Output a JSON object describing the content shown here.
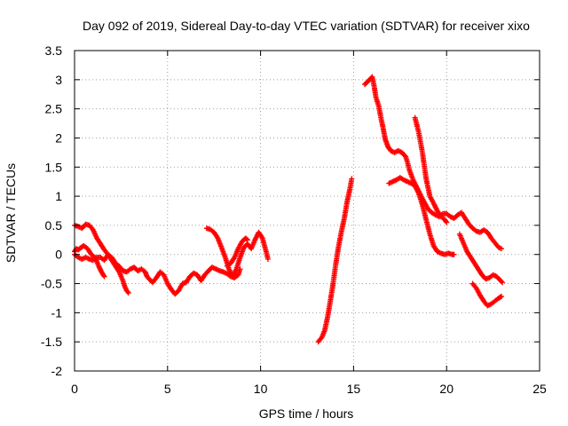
{
  "chart_data": {
    "type": "scatter",
    "title": "Day 092 of 2019, Sidereal Day-to-day VTEC variation (SDTVAR) for receiver xixo",
    "xlabel": "GPS time / hours",
    "ylabel": "SDTVAR / TECUs",
    "xlim": [
      0,
      25
    ],
    "ylim": [
      -2,
      3.5
    ],
    "xticks": [
      "0",
      "5",
      "10",
      "15",
      "20",
      "25"
    ],
    "yticks": [
      "-2",
      "-1.5",
      "-1",
      "-0.5",
      "0",
      "0.5",
      "1",
      "1.5",
      "2",
      "2.5",
      "3",
      "3.5"
    ],
    "grid": true,
    "marker": "plus",
    "color": "#ff0000",
    "series": [
      {
        "points": [
          [
            0.0,
            0.5
          ],
          [
            0.2,
            0.48
          ],
          [
            0.4,
            0.45
          ],
          [
            0.6,
            0.52
          ],
          [
            0.8,
            0.5
          ],
          [
            1.0,
            0.42
          ],
          [
            1.1,
            0.35
          ],
          [
            1.2,
            0.28
          ],
          [
            1.4,
            0.18
          ],
          [
            1.6,
            0.08
          ],
          [
            1.8,
            0.0
          ],
          [
            2.0,
            -0.1
          ],
          [
            2.2,
            -0.2
          ],
          [
            2.4,
            -0.3
          ],
          [
            2.6,
            -0.45
          ],
          [
            2.7,
            -0.55
          ],
          [
            2.8,
            -0.62
          ],
          [
            2.9,
            -0.66
          ]
        ]
      },
      {
        "points": [
          [
            0.0,
            0.05
          ],
          [
            0.1,
            0.1
          ],
          [
            0.2,
            0.08
          ],
          [
            0.35,
            0.12
          ],
          [
            0.5,
            0.15
          ],
          [
            0.7,
            0.1
          ],
          [
            0.9,
            0.0
          ],
          [
            1.1,
            -0.05
          ],
          [
            1.3,
            -0.2
          ],
          [
            1.45,
            -0.3
          ],
          [
            1.6,
            -0.38
          ]
        ]
      },
      {
        "points": [
          [
            0.0,
            0.0
          ],
          [
            0.2,
            -0.05
          ],
          [
            0.4,
            -0.08
          ],
          [
            0.6,
            -0.05
          ],
          [
            0.8,
            -0.08
          ],
          [
            1.0,
            -0.1
          ],
          [
            1.2,
            -0.05
          ],
          [
            1.4,
            -0.05
          ],
          [
            1.6,
            -0.1
          ],
          [
            1.8,
            0.0
          ],
          [
            2.0,
            -0.05
          ],
          [
            2.2,
            -0.15
          ],
          [
            2.4,
            -0.2
          ],
          [
            2.6,
            -0.28
          ],
          [
            2.8,
            -0.3
          ],
          [
            3.0,
            -0.25
          ],
          [
            3.2,
            -0.22
          ],
          [
            3.4,
            -0.28
          ],
          [
            3.6,
            -0.25
          ],
          [
            3.8,
            -0.3
          ],
          [
            3.9,
            -0.38
          ],
          [
            4.0,
            -0.42
          ],
          [
            4.2,
            -0.48
          ],
          [
            4.4,
            -0.4
          ],
          [
            4.6,
            -0.3
          ],
          [
            4.8,
            -0.35
          ],
          [
            5.0,
            -0.5
          ],
          [
            5.2,
            -0.6
          ],
          [
            5.4,
            -0.68
          ],
          [
            5.6,
            -0.62
          ],
          [
            5.8,
            -0.5
          ],
          [
            6.0,
            -0.48
          ],
          [
            6.2,
            -0.38
          ],
          [
            6.4,
            -0.32
          ],
          [
            6.6,
            -0.35
          ],
          [
            6.8,
            -0.45
          ],
          [
            7.0,
            -0.35
          ],
          [
            7.2,
            -0.28
          ],
          [
            7.4,
            -0.22
          ],
          [
            7.6,
            -0.25
          ],
          [
            7.8,
            -0.28
          ],
          [
            8.0,
            -0.3
          ],
          [
            8.2,
            -0.33
          ],
          [
            8.4,
            -0.38
          ],
          [
            8.6,
            -0.4
          ],
          [
            8.8,
            -0.35
          ],
          [
            8.9,
            -0.25
          ]
        ]
      },
      {
        "points": [
          [
            7.1,
            0.45
          ],
          [
            7.3,
            0.43
          ],
          [
            7.5,
            0.38
          ],
          [
            7.7,
            0.28
          ],
          [
            7.9,
            0.12
          ],
          [
            8.1,
            -0.05
          ],
          [
            8.3,
            -0.25
          ],
          [
            8.5,
            -0.38
          ],
          [
            8.7,
            -0.25
          ],
          [
            8.9,
            -0.05
          ],
          [
            9.1,
            0.12
          ],
          [
            9.3,
            0.18
          ],
          [
            9.5,
            0.1
          ],
          [
            9.7,
            0.25
          ],
          [
            9.9,
            0.38
          ],
          [
            10.1,
            0.28
          ],
          [
            10.3,
            0.05
          ],
          [
            10.4,
            -0.08
          ]
        ]
      },
      {
        "points": [
          [
            8.2,
            -0.2
          ],
          [
            8.4,
            -0.15
          ],
          [
            8.6,
            -0.05
          ],
          [
            8.8,
            0.1
          ],
          [
            9.0,
            0.22
          ],
          [
            9.2,
            0.28
          ],
          [
            9.3,
            0.25
          ]
        ]
      },
      {
        "points": [
          [
            13.1,
            -1.5
          ],
          [
            13.3,
            -1.42
          ],
          [
            13.45,
            -1.3
          ],
          [
            13.6,
            -1.08
          ],
          [
            13.75,
            -0.8
          ],
          [
            13.9,
            -0.5
          ],
          [
            14.05,
            -0.15
          ],
          [
            14.2,
            0.15
          ],
          [
            14.35,
            0.4
          ],
          [
            14.5,
            0.62
          ],
          [
            14.65,
            0.9
          ],
          [
            14.8,
            1.12
          ],
          [
            14.9,
            1.3
          ]
        ]
      },
      {
        "points": [
          [
            15.6,
            2.92
          ],
          [
            15.8,
            2.98
          ],
          [
            16.0,
            3.05
          ],
          [
            16.1,
            2.9
          ],
          [
            16.2,
            2.7
          ],
          [
            16.35,
            2.55
          ],
          [
            16.5,
            2.3
          ],
          [
            16.6,
            2.15
          ],
          [
            16.7,
            1.98
          ],
          [
            16.85,
            1.85
          ],
          [
            17.0,
            1.78
          ],
          [
            17.2,
            1.75
          ],
          [
            17.4,
            1.78
          ],
          [
            17.6,
            1.75
          ],
          [
            17.8,
            1.68
          ],
          [
            17.9,
            1.58
          ],
          [
            18.0,
            1.45
          ],
          [
            18.2,
            1.28
          ],
          [
            18.4,
            1.15
          ],
          [
            18.6,
            1.02
          ],
          [
            18.8,
            0.9
          ],
          [
            19.0,
            0.78
          ],
          [
            19.2,
            0.72
          ],
          [
            19.4,
            0.68
          ],
          [
            19.6,
            0.65
          ],
          [
            19.8,
            0.7
          ],
          [
            20.0,
            0.7
          ],
          [
            20.2,
            0.65
          ],
          [
            20.4,
            0.62
          ],
          [
            20.6,
            0.68
          ],
          [
            20.8,
            0.72
          ],
          [
            21.0,
            0.62
          ],
          [
            21.2,
            0.52
          ],
          [
            21.4,
            0.45
          ],
          [
            21.6,
            0.4
          ],
          [
            21.8,
            0.38
          ],
          [
            22.0,
            0.42
          ],
          [
            22.2,
            0.38
          ],
          [
            22.4,
            0.28
          ],
          [
            22.6,
            0.2
          ],
          [
            22.8,
            0.12
          ],
          [
            22.95,
            0.1
          ]
        ]
      },
      {
        "points": [
          [
            16.9,
            1.22
          ],
          [
            17.1,
            1.25
          ],
          [
            17.3,
            1.28
          ],
          [
            17.5,
            1.32
          ],
          [
            17.7,
            1.28
          ],
          [
            17.9,
            1.25
          ],
          [
            18.1,
            1.22
          ],
          [
            18.3,
            1.18
          ],
          [
            18.5,
            1.05
          ],
          [
            18.7,
            0.85
          ],
          [
            18.9,
            0.6
          ],
          [
            19.1,
            0.35
          ],
          [
            19.3,
            0.15
          ],
          [
            19.5,
            0.05
          ],
          [
            19.7,
            0.02
          ],
          [
            19.9,
            0.0
          ],
          [
            20.1,
            0.02
          ],
          [
            20.3,
            0.0
          ],
          [
            20.4,
            0.0
          ]
        ]
      },
      {
        "points": [
          [
            18.3,
            2.35
          ],
          [
            18.5,
            2.1
          ],
          [
            18.7,
            1.75
          ],
          [
            18.9,
            1.3
          ],
          [
            19.1,
            1.0
          ],
          [
            19.3,
            0.88
          ],
          [
            19.5,
            0.75
          ],
          [
            19.7,
            0.65
          ],
          [
            19.9,
            0.6
          ],
          [
            20.0,
            0.55
          ]
        ]
      },
      {
        "points": [
          [
            20.7,
            0.35
          ],
          [
            20.9,
            0.2
          ],
          [
            21.1,
            0.05
          ],
          [
            21.3,
            -0.05
          ],
          [
            21.5,
            -0.15
          ],
          [
            21.7,
            -0.25
          ],
          [
            21.9,
            -0.35
          ],
          [
            22.1,
            -0.42
          ],
          [
            22.3,
            -0.4
          ],
          [
            22.5,
            -0.35
          ],
          [
            22.7,
            -0.38
          ],
          [
            22.9,
            -0.45
          ],
          [
            23.0,
            -0.48
          ]
        ]
      },
      {
        "points": [
          [
            21.4,
            -0.5
          ],
          [
            21.6,
            -0.58
          ],
          [
            21.8,
            -0.7
          ],
          [
            22.0,
            -0.8
          ],
          [
            22.2,
            -0.88
          ],
          [
            22.4,
            -0.85
          ],
          [
            22.6,
            -0.8
          ],
          [
            22.8,
            -0.75
          ],
          [
            22.95,
            -0.72
          ]
        ]
      }
    ]
  }
}
